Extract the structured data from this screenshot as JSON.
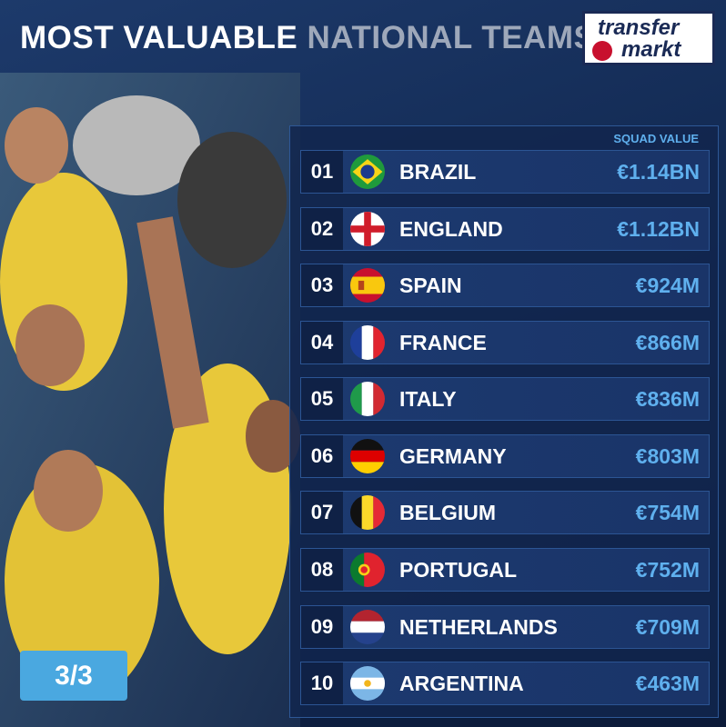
{
  "header": {
    "title_main": "MOST VALUABLE",
    "title_accent": "NATIONAL TEAMS",
    "logo": [
      "transfer",
      "markt"
    ]
  },
  "table": {
    "column_header": "SQUAD VALUE",
    "rows": [
      [
        "01",
        "BRAZIL",
        "€1.14BN"
      ],
      [
        "02",
        "ENGLAND",
        "€1.12BN"
      ],
      [
        "03",
        "SPAIN",
        "€924M"
      ],
      [
        "04",
        "FRANCE",
        "€866M"
      ],
      [
        "05",
        "ITALY",
        "€836M"
      ],
      [
        "06",
        "GERMANY",
        "€803M"
      ],
      [
        "07",
        "BELGIUM",
        "€754M"
      ],
      [
        "08",
        "PORTUGAL",
        "€752M"
      ],
      [
        "09",
        "NETHERLANDS",
        "€709M"
      ],
      [
        "10",
        "ARGENTINA",
        "€463M"
      ]
    ]
  },
  "page_indicator": "3/3"
}
